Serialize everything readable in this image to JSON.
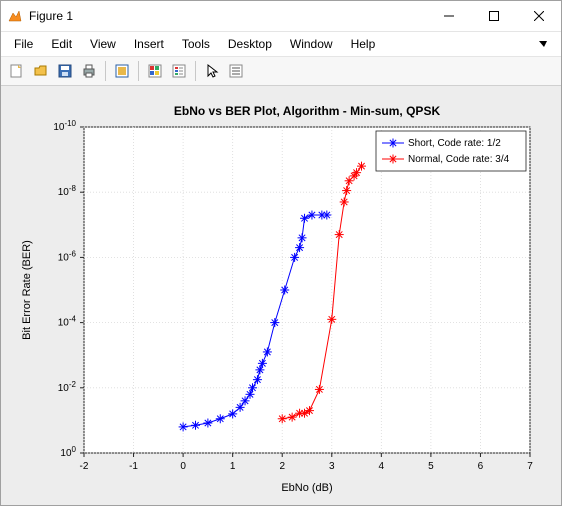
{
  "window": {
    "title": "Figure 1",
    "menus": [
      "File",
      "Edit",
      "View",
      "Insert",
      "Tools",
      "Desktop",
      "Window",
      "Help"
    ]
  },
  "chart": {
    "title": "EbNo vs BER Plot, Algorithm - Min-sum, QPSK",
    "title_fontsize": 12,
    "xlabel": "EbNo (dB)",
    "ylabel": "Bit Error Rate (BER)",
    "label_fontsize": 11,
    "tick_fontsize": 10,
    "xlim": [
      -2,
      7
    ],
    "ylim_exp": [
      -10,
      0
    ],
    "xticks": [
      -2,
      -1,
      0,
      1,
      2,
      3,
      4,
      5,
      6,
      7
    ],
    "ytick_exps": [
      0,
      -2,
      -4,
      -6,
      -8,
      -10
    ],
    "background_color": "#ededed",
    "axes_bg": "#ffffff",
    "grid_color": "#d9d9d9",
    "axis_color": "#222222",
    "text_color": "#000000",
    "line_width": 1,
    "marker": "star",
    "marker_size": 4.5,
    "legend": {
      "position": "top-right",
      "border": "#222222",
      "bg": "#ffffff",
      "fontsize": 10,
      "items": [
        {
          "label": "Short, Code rate: 1/2",
          "color": "#0000ff"
        },
        {
          "label": "Normal, Code rate: 3/4",
          "color": "#ff0000"
        }
      ]
    },
    "series": [
      {
        "name": "short",
        "color": "#0000ff",
        "points": [
          [
            0.0,
            -0.8
          ],
          [
            0.25,
            -0.85
          ],
          [
            0.5,
            -0.92
          ],
          [
            0.75,
            -1.05
          ],
          [
            1.0,
            -1.2
          ],
          [
            1.15,
            -1.4
          ],
          [
            1.25,
            -1.6
          ],
          [
            1.35,
            -1.8
          ],
          [
            1.4,
            -2.0
          ],
          [
            1.5,
            -2.25
          ],
          [
            1.55,
            -2.55
          ],
          [
            1.6,
            -2.75
          ],
          [
            1.7,
            -3.1
          ],
          [
            1.85,
            -4.0
          ],
          [
            2.05,
            -5.0
          ],
          [
            2.25,
            -6.0
          ],
          [
            2.35,
            -6.3
          ],
          [
            2.4,
            -6.6
          ],
          [
            2.45,
            -7.2
          ],
          [
            2.6,
            -7.3
          ],
          [
            2.8,
            -7.3
          ],
          [
            2.9,
            -7.3
          ]
        ]
      },
      {
        "name": "normal",
        "color": "#ff0000",
        "points": [
          [
            2.0,
            -1.05
          ],
          [
            2.2,
            -1.1
          ],
          [
            2.35,
            -1.22
          ],
          [
            2.45,
            -1.22
          ],
          [
            2.55,
            -1.3
          ],
          [
            2.75,
            -1.95
          ],
          [
            3.0,
            -4.1
          ],
          [
            3.15,
            -6.7
          ],
          [
            3.25,
            -7.7
          ],
          [
            3.3,
            -8.05
          ],
          [
            3.35,
            -8.35
          ],
          [
            3.45,
            -8.5
          ],
          [
            3.5,
            -8.6
          ],
          [
            3.6,
            -8.8
          ]
        ]
      }
    ]
  },
  "toolbar_icons": [
    "new-figure",
    "open",
    "save",
    "print",
    "sep",
    "data-cursor",
    "sep",
    "colorbar",
    "legend",
    "sep",
    "arrow",
    "edit-plot"
  ]
}
